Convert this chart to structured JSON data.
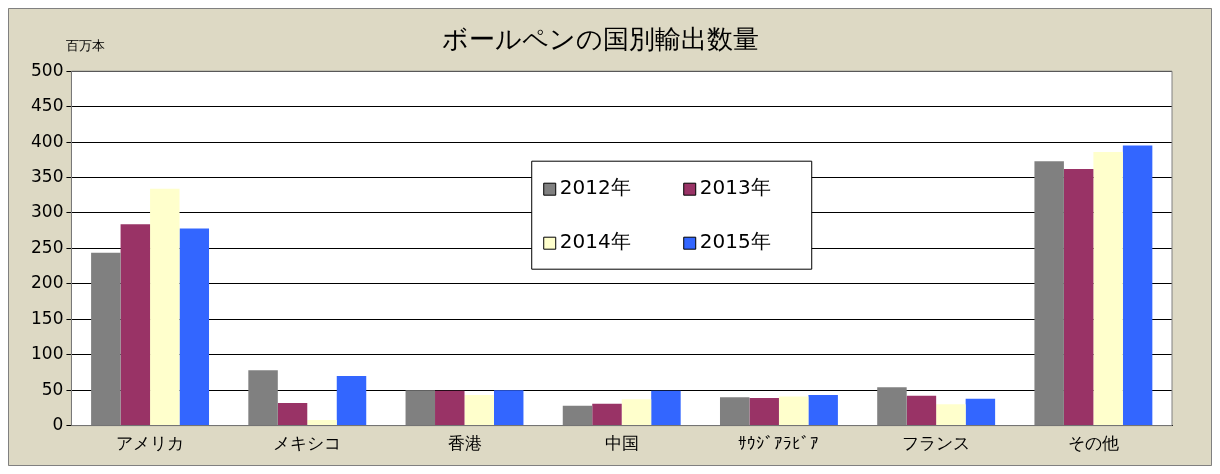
{
  "chart_data": {
    "type": "bar",
    "title": "ボールペンの国別輸出数量",
    "ylabel": "百万本",
    "categories": [
      "アメリカ",
      "メキシコ",
      "香港",
      "中国",
      "ｻｳｼﾞｱﾗﾋﾞｱ",
      "フランス",
      "その他"
    ],
    "series": [
      {
        "name": "2012年",
        "color": "#808080",
        "values": [
          244,
          78,
          50,
          28,
          40,
          54,
          373
        ]
      },
      {
        "name": "2013年",
        "color": "#993366",
        "values": [
          284,
          32,
          49,
          31,
          39,
          42,
          362
        ]
      },
      {
        "name": "2014年",
        "color": "#ffffcc",
        "values": [
          334,
          8,
          43,
          37,
          41,
          30,
          386
        ]
      },
      {
        "name": "2015年",
        "color": "#3366ff",
        "values": [
          278,
          70,
          50,
          49,
          43,
          38,
          395
        ]
      }
    ],
    "ylim": [
      0,
      500
    ],
    "yticks": [
      0,
      50,
      100,
      150,
      200,
      250,
      300,
      350,
      400,
      450,
      500
    ],
    "grid": "y",
    "legend": "top"
  }
}
